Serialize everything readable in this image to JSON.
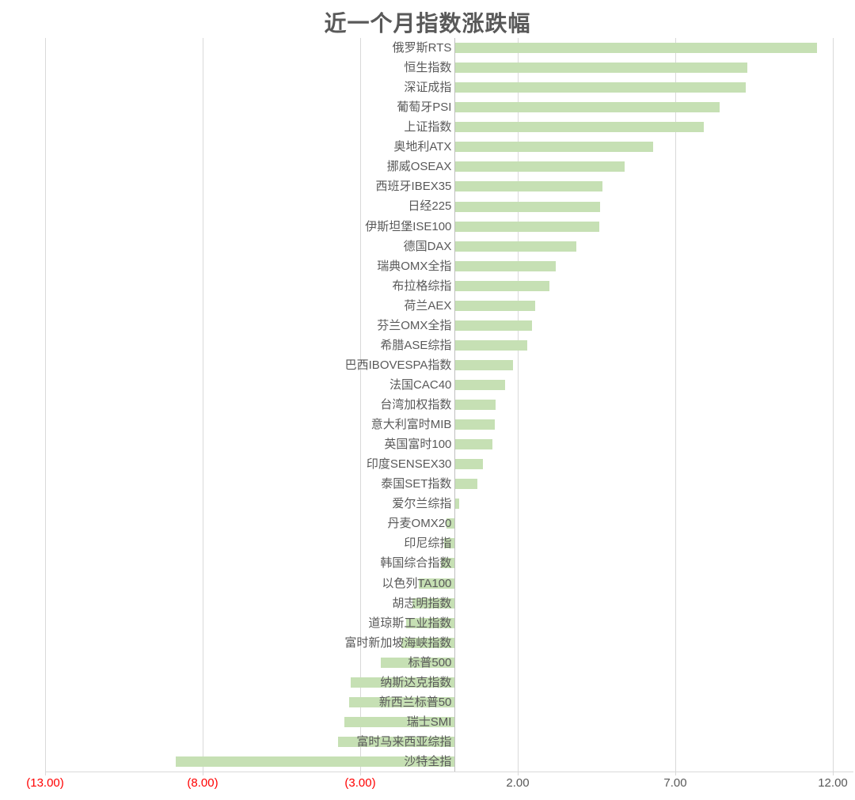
{
  "chart_data": {
    "type": "bar",
    "orientation": "horizontal",
    "title": "近一个月指数涨跌幅",
    "xlabel": "",
    "ylabel": "",
    "xlim": [
      -13,
      12
    ],
    "grid": true,
    "legend": false,
    "bar_color": "#c6e0b4",
    "label_color": "#595959",
    "gridline_color": "#d9d9d9",
    "negative_tick_color": "#ff0000",
    "x_ticks": [
      {
        "value": -13,
        "label": "(13.00)",
        "negative": true
      },
      {
        "value": -8,
        "label": "(8.00)",
        "negative": true
      },
      {
        "value": -3,
        "label": "(3.00)",
        "negative": true
      },
      {
        "value": 2,
        "label": "2.00",
        "negative": false
      },
      {
        "value": 7,
        "label": "7.00",
        "negative": false
      },
      {
        "value": 12,
        "label": "12.00",
        "negative": false
      }
    ],
    "categories": [
      "俄罗斯RTS",
      "恒生指数",
      "深证成指",
      "葡萄牙PSI",
      "上证指数",
      "奥地利ATX",
      "挪威OSEAX",
      "西班牙IBEX35",
      "日经225",
      "伊斯坦堡ISE100",
      "德国DAX",
      "瑞典OMX全指",
      "布拉格综指",
      "荷兰AEX",
      "芬兰OMX全指",
      "希腊ASE综指",
      "巴西IBOVESPA指数",
      "法国CAC40",
      "台湾加权指数",
      "意大利富时MIB",
      "英国富时100",
      "印度SENSEX30",
      "泰国SET指数",
      "爱尔兰综指",
      "丹麦OMX20",
      "印尼综指",
      "韩国综合指数",
      "以色列TA100",
      "胡志明指数",
      "道琼斯工业指数",
      "富时新加坡海峡指数",
      "标普500",
      "纳斯达克指数",
      "新西兰标普50",
      "瑞士SMI",
      "富时马来西亚综指",
      "沙特全指"
    ],
    "values": [
      11.5,
      9.3,
      9.25,
      8.4,
      7.9,
      6.3,
      5.4,
      4.7,
      4.62,
      4.6,
      3.85,
      3.2,
      3.0,
      2.55,
      2.45,
      2.3,
      1.85,
      1.6,
      1.3,
      1.28,
      1.2,
      0.9,
      0.72,
      0.15,
      -0.25,
      -0.35,
      -0.45,
      -1.15,
      -1.35,
      -1.55,
      -1.7,
      -2.35,
      -3.3,
      -3.35,
      -3.5,
      -3.7,
      -8.85
    ]
  }
}
